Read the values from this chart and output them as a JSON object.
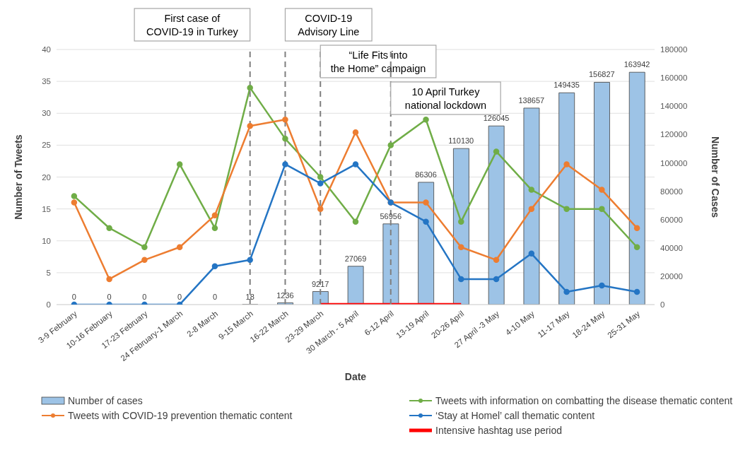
{
  "chart_data": {
    "type": "line",
    "xlabel": "Date",
    "ylabel": "Number of Tweets",
    "y2label": "Number of Cases",
    "categories": [
      "3-9 February",
      "10-16 February",
      "17-23 February",
      "24 February-1 March",
      "2-8 March",
      "9-15 March",
      "16-22 March",
      "23-29 March",
      "30 March - 5 April",
      "6-12 April",
      "13-19 April",
      "20-26 April",
      "27 April -3 May",
      "4-10 May",
      "11-17 May",
      "18-24 May",
      "25-31 May"
    ],
    "series": [
      {
        "name": "Number of cases",
        "type": "bar",
        "axis": "y2",
        "color": "#9dc3e6",
        "values": [
          0,
          0,
          0,
          0,
          0,
          18,
          1236,
          9217,
          27069,
          56956,
          86306,
          110130,
          126045,
          138657,
          149435,
          156827,
          163942
        ],
        "value_labels": [
          "0",
          "0",
          "0",
          "0",
          "0",
          "18",
          "1236",
          "9217",
          "27069",
          "56956",
          "86306",
          "110130",
          "126045",
          "138657",
          "149435",
          "156827",
          "163942"
        ]
      },
      {
        "name": "Tweets with information on combatting the disease thematic content",
        "color": "#70ad47",
        "values": [
          17,
          12,
          9,
          22,
          12,
          34,
          26,
          20,
          13,
          25,
          29,
          13,
          24,
          18,
          15,
          15,
          9
        ]
      },
      {
        "name": "Tweets with COVID-19 prevention thematic content",
        "color": "#ed7d31",
        "values": [
          16,
          4,
          7,
          9,
          14,
          28,
          29,
          15,
          27,
          16,
          16,
          9,
          7,
          15,
          22,
          18,
          12
        ]
      },
      {
        "name": "‘Stay at Homel’ call thematic content",
        "color": "#2475c4",
        "values": [
          0,
          0,
          0,
          0,
          6,
          7,
          22,
          19,
          22,
          16,
          13,
          4,
          4,
          8,
          2,
          3,
          2
        ]
      },
      {
        "name": "Intensive hashtag use period",
        "color": "#ff0000",
        "marker": "none",
        "values": [
          null,
          null,
          null,
          null,
          null,
          null,
          null,
          0,
          0,
          0,
          0,
          0,
          null,
          null,
          null,
          null,
          null
        ]
      }
    ],
    "ylim": [
      0,
      40
    ],
    "yticks": [
      0,
      5,
      10,
      15,
      20,
      25,
      30,
      35,
      40
    ],
    "y2lim": [
      0,
      180000
    ],
    "y2ticks": [
      0,
      20000,
      40000,
      60000,
      80000,
      100000,
      120000,
      140000,
      160000,
      180000
    ],
    "ref_lines": [
      {
        "axis": "x",
        "value": "9-15 March",
        "label": "First case of COVID-19 in Turkey",
        "color": "#7f7f7f",
        "line_style": "dashed"
      },
      {
        "axis": "x",
        "value": "16-22 March",
        "label": "COVID-19 Advisory Line",
        "color": "#7f7f7f",
        "line_style": "dashed"
      },
      {
        "axis": "x",
        "value": "23-29 March",
        "label": "“Life Fits into the Home” campaign",
        "color": "#7f7f7f",
        "line_style": "dashed"
      },
      {
        "axis": "x",
        "value": "6-12 April",
        "label": "10 April Turkey national lockdown",
        "color": "#7f7f7f",
        "line_style": "dashed"
      }
    ],
    "grid": "y",
    "legend": "bottom",
    "marker": "circle",
    "line_style": "solid"
  }
}
